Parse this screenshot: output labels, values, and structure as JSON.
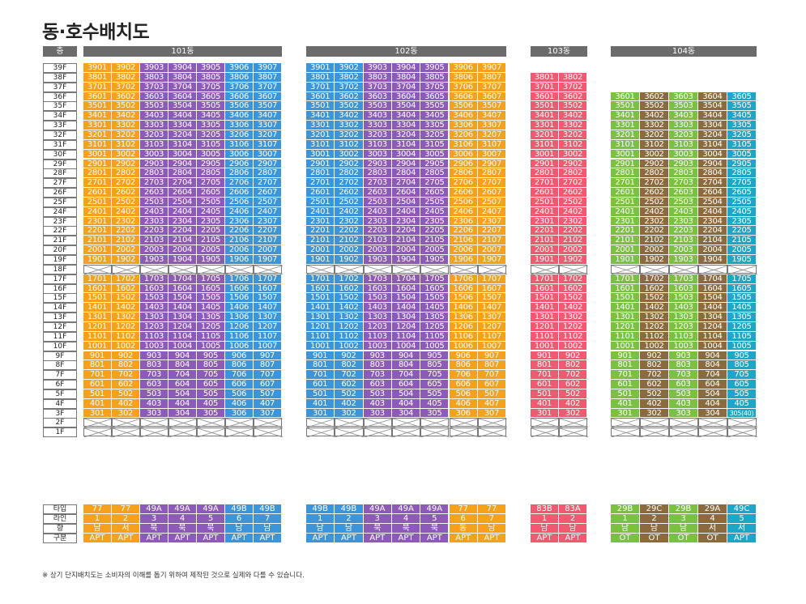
{
  "title": "동·호수배치도",
  "header": {
    "floor_label": "층",
    "buildings": [
      "101동",
      "102동",
      "103동",
      "104동"
    ]
  },
  "floors_label": [
    "39F",
    "38F",
    "37F",
    "36F",
    "35F",
    "34F",
    "33F",
    "32F",
    "31F",
    "30F",
    "29F",
    "28F",
    "27F",
    "26F",
    "25F",
    "24F",
    "23F",
    "22F",
    "21F",
    "20F",
    "19F",
    "18F",
    "17F",
    "16F",
    "15F",
    "14F",
    "13F",
    "12F",
    "11F",
    "10F",
    "9F",
    "8F",
    "7F",
    "6F",
    "5F",
    "4F",
    "3F",
    "2F",
    "1F"
  ],
  "buildings": [
    {
      "name": "101동",
      "max_floor": 39,
      "colors": [
        "#f5a11c",
        "#f5a11c",
        "#8e5ab8",
        "#8e5ab8",
        "#8e5ab8",
        "#3b95d8",
        "#3b95d8"
      ],
      "units": [
        1,
        2,
        3,
        4,
        5,
        6,
        7
      ]
    },
    {
      "name": "102동",
      "max_floor": 39,
      "colors": [
        "#3b95d8",
        "#3b95d8",
        "#8e5ab8",
        "#8e5ab8",
        "#8e5ab8",
        "#f5a11c",
        "#f5a11c"
      ],
      "units": [
        1,
        2,
        3,
        4,
        5,
        6,
        7
      ]
    },
    {
      "name": "103동",
      "max_floor": 38,
      "colors": [
        "#ef5a70",
        "#ef5a70"
      ],
      "units": [
        1,
        2
      ]
    },
    {
      "name": "104동",
      "max_floor": 36,
      "colors": [
        "#7ac142",
        "#8b6b3e",
        "#7ac142",
        "#8b6b3e",
        "#1ea6c8"
      ],
      "units": [
        1,
        2,
        3,
        4,
        5
      ],
      "special_304_5": "305(40)"
    }
  ],
  "footer": {
    "labels": [
      "타입",
      "라인",
      "향",
      "구분"
    ],
    "b101": {
      "type": [
        "77",
        "77",
        "49A",
        "49A",
        "49A",
        "49B",
        "49B"
      ],
      "line": [
        "1",
        "2",
        "3",
        "4",
        "5",
        "6",
        "7"
      ],
      "dir": [
        "남",
        "서",
        "북",
        "북",
        "북",
        "남",
        "남"
      ],
      "kind": [
        "APT",
        "APT",
        "APT",
        "APT",
        "APT",
        "APT",
        "APT"
      ]
    },
    "b102": {
      "type": [
        "49B",
        "49B",
        "49A",
        "49A",
        "49A",
        "77",
        "77"
      ],
      "line": [
        "1",
        "2",
        "3",
        "4",
        "5",
        "6",
        "7"
      ],
      "dir": [
        "남",
        "남",
        "북",
        "북",
        "북",
        "동",
        "남"
      ],
      "kind": [
        "APT",
        "APT",
        "APT",
        "APT",
        "APT",
        "APT",
        "APT"
      ]
    },
    "b103": {
      "type": [
        "83B",
        "83A"
      ],
      "line": [
        "1",
        "2"
      ],
      "dir": [
        "남",
        "남"
      ],
      "kind": [
        "APT",
        "APT"
      ]
    },
    "b104": {
      "type": [
        "29B",
        "29C",
        "29B",
        "29A",
        "49C"
      ],
      "line": [
        "1",
        "2",
        "3",
        "4",
        "5"
      ],
      "dir": [
        "남",
        "남",
        "남",
        "서",
        "서"
      ],
      "kind": [
        "OT",
        "OT",
        "OT",
        "OT",
        "APT"
      ]
    }
  },
  "note": "※  상기 단지배치도는 소비자의 이해를 돕기 위하여 제작된 것으로 실제와 다를 수 있습니다."
}
